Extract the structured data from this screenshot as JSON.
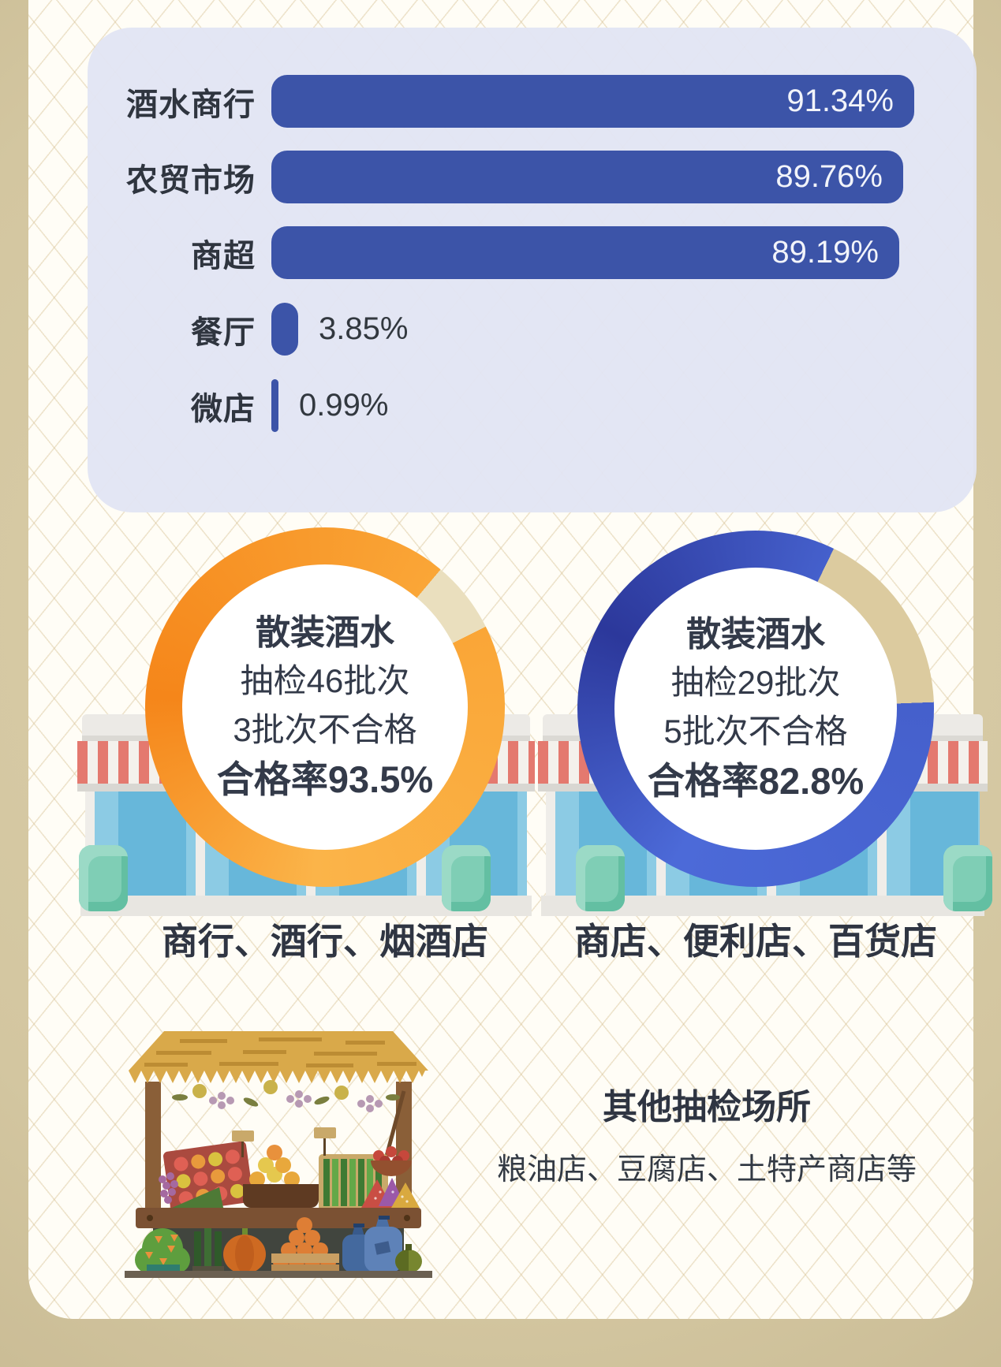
{
  "page": {
    "background_color": "#CDBF9B",
    "card_color": "#FFFDF6"
  },
  "bar_chart": {
    "panel_color": "#E1E5F3",
    "bar_color": "#3C54A8",
    "items": [
      {
        "label": "酒水商行",
        "value": 91.34,
        "value_label": "91.34%"
      },
      {
        "label": "农贸市场",
        "value": 89.76,
        "value_label": "89.76%"
      },
      {
        "label": "商超",
        "value": 89.19,
        "value_label": "89.19%"
      },
      {
        "label": "餐厅",
        "value": 3.85,
        "value_label": "3.85%"
      },
      {
        "label": "微店",
        "value": 0.99,
        "value_label": "0.99%"
      }
    ]
  },
  "donuts": [
    {
      "title": "散装酒水",
      "line_sampled": "抽检46批次",
      "line_failed": "3批次不合格",
      "line_rate": "合格率93.5%",
      "pass_rate": 93.5,
      "gap_start_deg": 40,
      "gap_color": "#EADFBE",
      "ring_colors": [
        "#FAA637",
        "#FBB449",
        "#F5861A"
      ],
      "caption": "商行、酒行、烟酒店"
    },
    {
      "title": "散装酒水",
      "line_sampled": "抽检29批次",
      "line_failed": "5批次不合格",
      "line_rate": "合格率82.8%",
      "pass_rate": 82.8,
      "gap_start_deg": 26,
      "gap_color": "#DCCB9F",
      "ring_colors": [
        "#4560CC",
        "#4C6AD8",
        "#2C389B"
      ],
      "caption": "商店、便利店、百货店"
    }
  ],
  "other_venues": {
    "title": "其他抽检场所",
    "desc": "粮油店、豆腐店、土特产商店等"
  },
  "illustrations": {
    "storefront": {
      "awning_red": "#E4796F",
      "awning_white": "#F4F1EC",
      "window_blue": "#67B7DA",
      "window_light": "#8CCBE4",
      "bush_mint": "#7FCEB5",
      "roof_gray": "#ECEAE6"
    },
    "stall": {
      "roof_gold": "#D9A94A",
      "wood_brown": "#7B5133"
    }
  },
  "chart_data": [
    {
      "type": "bar",
      "orientation": "horizontal",
      "title": "",
      "categories": [
        "酒水商行",
        "农贸市场",
        "商超",
        "餐厅",
        "微店"
      ],
      "values": [
        91.34,
        89.76,
        89.19,
        3.85,
        0.99
      ],
      "value_labels": [
        "91.34%",
        "89.76%",
        "89.19%",
        "3.85%",
        "0.99%"
      ],
      "unit": "%",
      "xlim": [
        0,
        100
      ],
      "grid": false,
      "bar_color": "#3C54A8",
      "value_position": "inside-end for large bars, outside-end for small bars"
    },
    {
      "type": "pie",
      "variant": "donut",
      "title": "散装酒水 — 商行、酒行、烟酒店",
      "slices": [
        {
          "label": "合格",
          "value": 93.5,
          "color": "#F89B28"
        },
        {
          "label": "不合格",
          "value": 6.5,
          "color": "#EADFBE"
        }
      ],
      "annotations": [
        "散装酒水",
        "抽检46批次",
        "3批次不合格",
        "合格率93.5%"
      ],
      "sampled_batches": 46,
      "failed_batches": 3,
      "pass_rate_percent": 93.5
    },
    {
      "type": "pie",
      "variant": "donut",
      "title": "散装酒水 — 商店、便利店、百货店",
      "slices": [
        {
          "label": "合格",
          "value": 82.8,
          "color": "#3648B0"
        },
        {
          "label": "不合格",
          "value": 17.2,
          "color": "#DCCB9F"
        }
      ],
      "annotations": [
        "散装酒水",
        "抽检29批次",
        "5批次不合格",
        "合格率82.8%"
      ],
      "sampled_batches": 29,
      "failed_batches": 5,
      "pass_rate_percent": 82.8
    }
  ]
}
